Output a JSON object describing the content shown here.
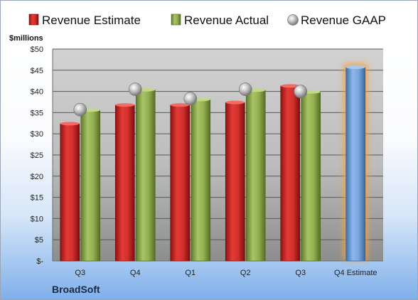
{
  "chart_data": {
    "type": "bar",
    "unit_label": "$millions",
    "company": "BroadSoft",
    "categories": [
      "Q3",
      "Q4",
      "Q1",
      "Q2",
      "Q3",
      "Q4 Estimate"
    ],
    "ylim": [
      0,
      50
    ],
    "y_ticks": [
      0,
      5,
      10,
      15,
      20,
      25,
      30,
      35,
      40,
      45,
      50
    ],
    "y_tick_labels": [
      "$-",
      "$5",
      "$10",
      "$15",
      "$20",
      "$25",
      "$30",
      "$35",
      "$40",
      "$45",
      "$50"
    ],
    "grid": true,
    "legend_position": "top",
    "series": [
      {
        "name": "Revenue Estimate",
        "values": [
          32.4,
          36.8,
          36.8,
          37.4,
          41.3,
          null
        ],
        "color": "#c0201f",
        "kind": "bar"
      },
      {
        "name": "Revenue Actual",
        "values": [
          35.6,
          40.4,
          38.1,
          40.3,
          39.9,
          null
        ],
        "color": "#8aa64a",
        "kind": "bar"
      },
      {
        "name": "Revenue GAAP",
        "values": [
          35.7,
          40.5,
          38.3,
          40.5,
          40.0,
          null
        ],
        "color": "#b9b9b9",
        "kind": "marker"
      }
    ],
    "estimate": {
      "category_index": 5,
      "value": 45.7,
      "color": "#6e9fd8"
    }
  }
}
